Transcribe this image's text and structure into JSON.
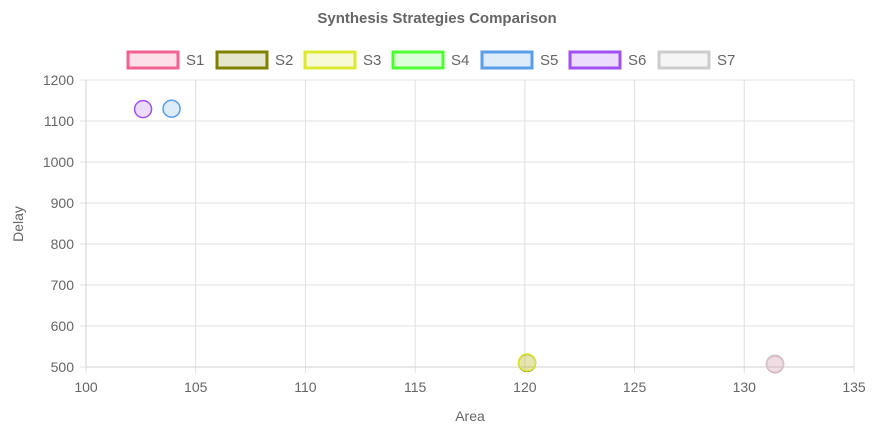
{
  "chart_data": {
    "type": "scatter",
    "title": "Synthesis Strategies Comparison",
    "xlabel": "Area",
    "ylabel": "Delay",
    "xlim": [
      100,
      135
    ],
    "ylim": [
      500,
      1200
    ],
    "xticks": [
      100,
      105,
      110,
      115,
      120,
      125,
      130,
      135
    ],
    "yticks": [
      500,
      600,
      700,
      800,
      900,
      1000,
      1100,
      1200
    ],
    "grid": true,
    "legend_position": "top",
    "series": [
      {
        "name": "S1",
        "border": "#f06292",
        "fill": "rgba(240,98,146,0.2)",
        "points": [
          {
            "x": 131.4,
            "y": 507
          }
        ]
      },
      {
        "name": "S2",
        "border": "#808000",
        "fill": "rgba(128,128,0,0.2)",
        "points": [
          {
            "x": 120.1,
            "y": 510
          }
        ]
      },
      {
        "name": "S3",
        "border": "#dce832",
        "fill": "rgba(220,232,50,0.2)",
        "points": [
          {
            "x": 120.1,
            "y": 511
          }
        ]
      },
      {
        "name": "S4",
        "border": "#4cff32",
        "fill": "rgba(76,255,50,0.2)",
        "points": []
      },
      {
        "name": "S5",
        "border": "#5a9ee8",
        "fill": "rgba(90,158,232,0.2)",
        "points": [
          {
            "x": 103.9,
            "y": 1130
          }
        ]
      },
      {
        "name": "S6",
        "border": "#a050f0",
        "fill": "rgba(160,80,240,0.2)",
        "points": [
          {
            "x": 102.6,
            "y": 1129
          }
        ]
      },
      {
        "name": "S7",
        "border": "#cccccc",
        "fill": "rgba(204,204,204,0.2)",
        "points": [
          {
            "x": 131.4,
            "y": 508
          }
        ]
      }
    ]
  }
}
